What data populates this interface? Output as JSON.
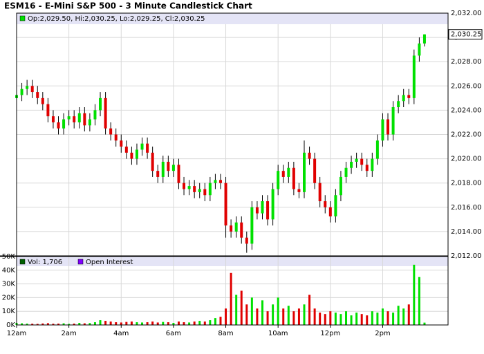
{
  "chart_data": {
    "type": "candlestick",
    "title": "ESM16 - E-Mini S&P 500 - 3 Minute Candlestick Chart",
    "ohlc_label": "Op:2,029.50, Hi:2,030.25, Lo:2,029.25, Cl:2,030.25",
    "up_color": "#00e000",
    "down_color": "#e00000",
    "grid": true,
    "x": [
      0,
      0.2,
      0.4,
      0.6,
      0.8,
      1,
      1.2,
      1.4,
      1.6,
      1.8,
      2,
      2.2,
      2.4,
      2.6,
      2.8,
      3,
      3.2,
      3.4,
      3.6,
      3.8,
      4,
      4.2,
      4.4,
      4.6,
      4.8,
      5,
      5.2,
      5.4,
      5.6,
      5.8,
      6,
      6.2,
      6.4,
      6.6,
      6.8,
      7,
      7.2,
      7.4,
      7.6,
      7.8,
      8,
      8.2,
      8.4,
      8.6,
      8.8,
      9,
      9.2,
      9.4,
      9.6,
      9.8,
      10,
      10.2,
      10.4,
      10.6,
      10.8,
      11,
      11.2,
      11.4,
      11.6,
      11.8,
      12,
      12.2,
      12.4,
      12.6,
      12.8,
      13,
      13.2,
      13.4,
      13.6,
      13.8,
      14,
      14.2,
      14.4,
      14.6,
      14.8,
      15,
      15.2,
      15.4,
      15.6
    ],
    "open": [
      2025,
      2025.25,
      2025.75,
      2026,
      2025.5,
      2025,
      2024.5,
      2023.5,
      2023,
      2022.5,
      2023.25,
      2023.5,
      2023,
      2023.75,
      2022.75,
      2023.25,
      2024,
      2025,
      2022.5,
      2022,
      2021.5,
      2021,
      2020.5,
      2020,
      2020.75,
      2021.25,
      2020.5,
      2019,
      2018.5,
      2019.75,
      2019,
      2019.5,
      2018,
      2017.5,
      2017.75,
      2017.25,
      2017.5,
      2017,
      2018,
      2018.25,
      2018,
      2014.5,
      2014,
      2014.75,
      2013.5,
      2013,
      2016,
      2015.5,
      2016.5,
      2015,
      2017.5,
      2019,
      2018.5,
      2019.25,
      2017.5,
      2017.25,
      2020.5,
      2020,
      2018,
      2016.5,
      2016,
      2015.25,
      2017,
      2018.5,
      2019.25,
      2019.75,
      2020,
      2019.5,
      2019,
      2020,
      2021.5,
      2023.25,
      2022,
      2024.25,
      2024.75,
      2025.25,
      2025,
      2028.5,
      2029.5
    ],
    "high": [
      2025.75,
      2026.25,
      2026.5,
      2026.5,
      2026,
      2025.5,
      2025,
      2024,
      2023.5,
      2023.75,
      2024,
      2024,
      2024.25,
      2024.25,
      2023.75,
      2024.5,
      2025.5,
      2025.5,
      2023,
      2022.5,
      2022,
      2021.5,
      2021,
      2021.25,
      2021.75,
      2021.75,
      2021,
      2019.5,
      2020.25,
      2020.25,
      2020,
      2020,
      2018.5,
      2018.25,
      2018.25,
      2018,
      2018,
      2018.5,
      2018.75,
      2018.75,
      2018.5,
      2015,
      2015.25,
      2015.25,
      2014,
      2016.5,
      2016.5,
      2017,
      2017,
      2018,
      2019.5,
      2019.5,
      2019.75,
      2019.75,
      2018,
      2021.5,
      2021,
      2020.5,
      2018.5,
      2017,
      2016.5,
      2017.5,
      2019,
      2019.75,
      2020.25,
      2020.5,
      2020.5,
      2020,
      2020.5,
      2022,
      2023.75,
      2023.75,
      2024.75,
      2025.25,
      2025.75,
      2025.75,
      2029,
      2030,
      2030.25
    ],
    "low": [
      2024.5,
      2024.75,
      2025.25,
      2025,
      2024.5,
      2024,
      2023,
      2022.5,
      2022,
      2022,
      2022.75,
      2022.5,
      2022.5,
      2022.25,
      2022.25,
      2022.75,
      2023.5,
      2022,
      2021.5,
      2021,
      2020.5,
      2020,
      2019.5,
      2019.5,
      2020.25,
      2020,
      2018.5,
      2018,
      2018,
      2018.5,
      2018.5,
      2017.5,
      2017,
      2017,
      2016.75,
      2016.75,
      2016.5,
      2016.5,
      2017.5,
      2017.5,
      2013.5,
      2013.5,
      2013.5,
      2013,
      2012.25,
      2012.5,
      2015,
      2015,
      2014.5,
      2014.5,
      2017,
      2018,
      2018,
      2017,
      2016.75,
      2016.75,
      2019.5,
      2017.5,
      2016,
      2015.5,
      2014.75,
      2014.75,
      2016.5,
      2018,
      2018.75,
      2019.25,
      2019,
      2018.5,
      2018.5,
      2019.5,
      2021,
      2021.5,
      2021.5,
      2023.75,
      2024.25,
      2024.5,
      2024.5,
      2028,
      2029.25
    ],
    "close": [
      2025.25,
      2025.75,
      2026,
      2025.5,
      2025,
      2024.5,
      2023.5,
      2023,
      2022.5,
      2023.25,
      2023.5,
      2023,
      2023.75,
      2022.75,
      2023.25,
      2024,
      2025,
      2022.5,
      2022,
      2021.5,
      2021,
      2020.5,
      2020,
      2020.75,
      2021.25,
      2020.5,
      2019,
      2018.5,
      2019.75,
      2019,
      2019.5,
      2018,
      2017.5,
      2017.75,
      2017.25,
      2017.5,
      2017,
      2018,
      2018.25,
      2018,
      2014.5,
      2014,
      2014.75,
      2013.5,
      2013,
      2016,
      2015.5,
      2016.5,
      2015,
      2017.5,
      2019,
      2018.5,
      2019.25,
      2017.5,
      2017.25,
      2020.5,
      2020,
      2018,
      2016.5,
      2016,
      2015.25,
      2017,
      2018.5,
      2019.25,
      2019.75,
      2020,
      2019.5,
      2019,
      2020,
      2021.5,
      2023.25,
      2022,
      2024.25,
      2024.75,
      2025.25,
      2025,
      2028.5,
      2029.5,
      2030.25
    ],
    "last_price": {
      "value": 2030.25,
      "label": "2,030.25"
    },
    "xlim": [
      0,
      16.5
    ],
    "xticks": [
      {
        "value": 0,
        "label": "12am"
      },
      {
        "value": 2,
        "label": "2am"
      },
      {
        "value": 4,
        "label": "4am"
      },
      {
        "value": 6,
        "label": "6am"
      },
      {
        "value": 8,
        "label": "8am"
      },
      {
        "value": 10,
        "label": "10am"
      },
      {
        "value": 12,
        "label": "12pm"
      },
      {
        "value": 14,
        "label": "2pm"
      }
    ],
    "ylim": [
      2012,
      2032
    ],
    "yticks": [
      {
        "value": 2012,
        "label": "2,012.00"
      },
      {
        "value": 2014,
        "label": "2,014.00"
      },
      {
        "value": 2016,
        "label": "2,016.00"
      },
      {
        "value": 2018,
        "label": "2,018.00"
      },
      {
        "value": 2020,
        "label": "2,020.00"
      },
      {
        "value": 2022,
        "label": "2,022.00"
      },
      {
        "value": 2024,
        "label": "2,024.00"
      },
      {
        "value": 2026,
        "label": "2,026.00"
      },
      {
        "value": 2028,
        "label": "2,028.00"
      },
      {
        "value": 2030,
        "label": "2,030.00"
      },
      {
        "value": 2032,
        "label": "2,032.00"
      }
    ],
    "volume": {
      "name": "Vol: 1,706",
      "color": "#006000",
      "values": [
        1500,
        1200,
        1000,
        900,
        800,
        1100,
        1300,
        900,
        1000,
        1200,
        800,
        1000,
        1500,
        1200,
        1400,
        2000,
        3500,
        3000,
        2500,
        2000,
        1800,
        2200,
        2500,
        2000,
        1800,
        2000,
        2500,
        1800,
        2200,
        2000,
        1500,
        2500,
        2000,
        1800,
        2500,
        3000,
        2500,
        3500,
        5000,
        6000,
        12000,
        38000,
        22000,
        25000,
        15000,
        20000,
        12000,
        18000,
        10000,
        15000,
        20000,
        12000,
        14000,
        10000,
        12000,
        15000,
        22000,
        12000,
        9000,
        8000,
        10000,
        9000,
        8000,
        10000,
        7000,
        9000,
        8000,
        7000,
        10000,
        9000,
        12000,
        10000,
        9000,
        14000,
        12000,
        15000,
        44000,
        35000,
        1706
      ],
      "open_interest_name": "Open Interest",
      "open_interest_color": "#8000ff",
      "ylim": [
        0,
        50000
      ],
      "yticks": [
        {
          "value": 0,
          "label": "0K"
        },
        {
          "value": 10000,
          "label": "10K"
        },
        {
          "value": 20000,
          "label": "20K"
        },
        {
          "value": 30000,
          "label": "30K"
        },
        {
          "value": 40000,
          "label": "40K"
        },
        {
          "value": 50000,
          "label": "50K"
        }
      ]
    }
  }
}
